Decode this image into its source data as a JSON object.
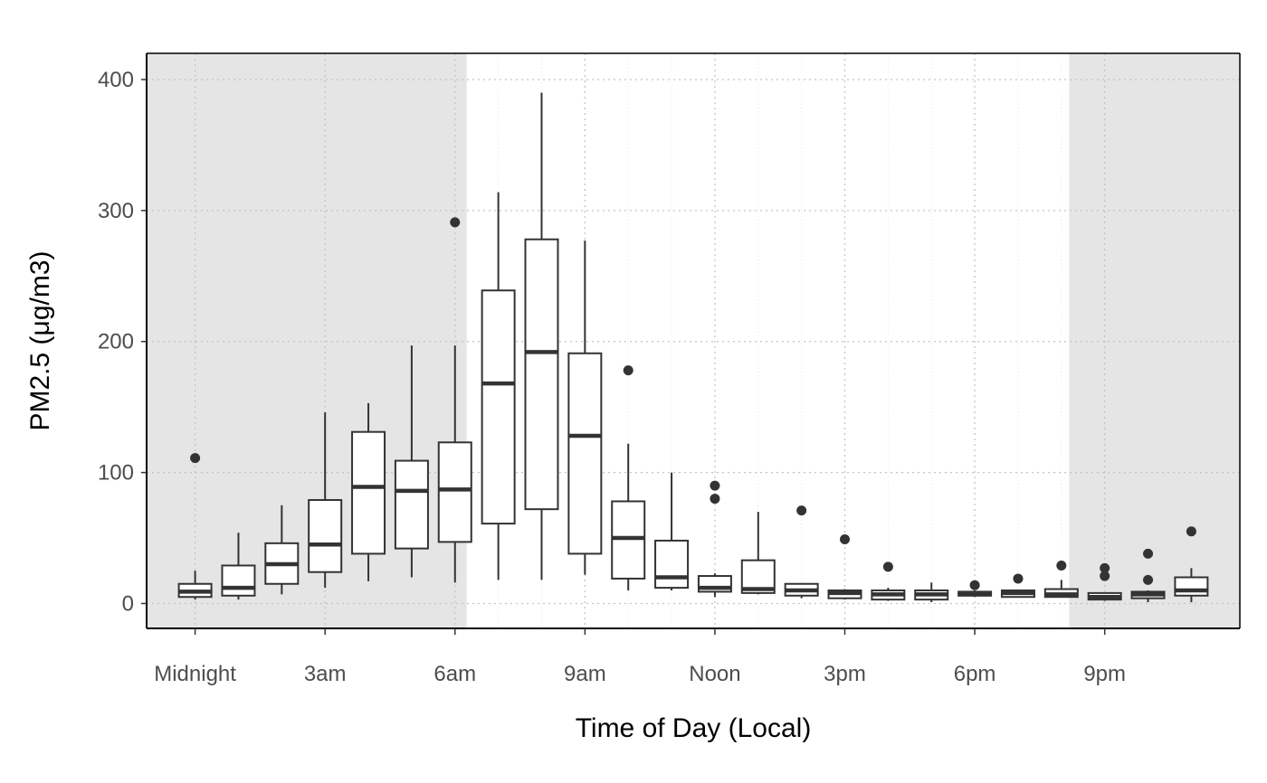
{
  "chart_data": {
    "type": "box",
    "xlabel": "Time of Day (Local)",
    "ylabel": "PM2.5 (μg/m3)",
    "ylim": [
      -19,
      420
    ],
    "xlim": [
      -1.12,
      24.12
    ],
    "yticks": [
      0,
      100,
      200,
      300,
      400
    ],
    "xticks": [
      {
        "hour": 0,
        "label": "Midnight"
      },
      {
        "hour": 3,
        "label": "3am"
      },
      {
        "hour": 6,
        "label": "6am"
      },
      {
        "hour": 9,
        "label": "9am"
      },
      {
        "hour": 12,
        "label": "Noon"
      },
      {
        "hour": 15,
        "label": "3pm"
      },
      {
        "hour": 18,
        "label": "6pm"
      },
      {
        "hour": 21,
        "label": "9pm"
      }
    ],
    "night_shading": [
      {
        "from": -1.12,
        "to": 6.27
      },
      {
        "from": 20.18,
        "to": 24.12
      }
    ],
    "shading_color": "#e5e5e5",
    "box_color": "#333333",
    "grid": "dotted",
    "boxes": [
      {
        "hour": 0,
        "low": 3,
        "q1": 5,
        "median": 9,
        "q3": 15,
        "high": 25,
        "outliers": [
          111
        ]
      },
      {
        "hour": 1,
        "low": 3,
        "q1": 6,
        "median": 12,
        "q3": 29,
        "high": 54,
        "outliers": []
      },
      {
        "hour": 2,
        "low": 7,
        "q1": 15,
        "median": 30,
        "q3": 46,
        "high": 75,
        "outliers": []
      },
      {
        "hour": 3,
        "low": 12,
        "q1": 24,
        "median": 45,
        "q3": 79,
        "high": 146,
        "outliers": []
      },
      {
        "hour": 4,
        "low": 17,
        "q1": 38,
        "median": 89,
        "q3": 131,
        "high": 153,
        "outliers": []
      },
      {
        "hour": 5,
        "low": 20,
        "q1": 42,
        "median": 86,
        "q3": 109,
        "high": 197,
        "outliers": []
      },
      {
        "hour": 6,
        "low": 16,
        "q1": 47,
        "median": 87,
        "q3": 123,
        "high": 197,
        "outliers": [
          291
        ]
      },
      {
        "hour": 7,
        "low": 18,
        "q1": 61,
        "median": 168,
        "q3": 239,
        "high": 314,
        "outliers": []
      },
      {
        "hour": 8,
        "low": 18,
        "q1": 72,
        "median": 192,
        "q3": 278,
        "high": 390,
        "outliers": []
      },
      {
        "hour": 9,
        "low": 22,
        "q1": 38,
        "median": 128,
        "q3": 191,
        "high": 277,
        "outliers": []
      },
      {
        "hour": 10,
        "low": 10,
        "q1": 19,
        "median": 50,
        "q3": 78,
        "high": 122,
        "outliers": [
          178
        ]
      },
      {
        "hour": 11,
        "low": 10,
        "q1": 12,
        "median": 20,
        "q3": 48,
        "high": 100,
        "outliers": []
      },
      {
        "hour": 12,
        "low": 5,
        "q1": 9,
        "median": 12,
        "q3": 21,
        "high": 23,
        "outliers": [
          80,
          90
        ]
      },
      {
        "hour": 13,
        "low": 7,
        "q1": 8,
        "median": 11,
        "q3": 33,
        "high": 70,
        "outliers": []
      },
      {
        "hour": 14,
        "low": 4,
        "q1": 6,
        "median": 10,
        "q3": 15,
        "high": 15,
        "outliers": [
          71
        ]
      },
      {
        "hour": 15,
        "low": 3,
        "q1": 4,
        "median": 8,
        "q3": 10,
        "high": 11,
        "outliers": [
          49
        ]
      },
      {
        "hour": 16,
        "low": 2,
        "q1": 3,
        "median": 7,
        "q3": 10,
        "high": 12,
        "outliers": [
          28
        ]
      },
      {
        "hour": 17,
        "low": 1,
        "q1": 3,
        "median": 7,
        "q3": 10,
        "high": 16,
        "outliers": []
      },
      {
        "hour": 18,
        "low": 5,
        "q1": 6,
        "median": 7,
        "q3": 9,
        "high": 10,
        "outliers": [
          14
        ]
      },
      {
        "hour": 19,
        "low": 5,
        "q1": 5,
        "median": 8,
        "q3": 10,
        "high": 10,
        "outliers": [
          19
        ]
      },
      {
        "hour": 20,
        "low": 5,
        "q1": 5,
        "median": 7,
        "q3": 11,
        "high": 18,
        "outliers": [
          29
        ]
      },
      {
        "hour": 21,
        "low": 2,
        "q1": 3,
        "median": 5,
        "q3": 8,
        "high": 8,
        "outliers": [
          21,
          27
        ]
      },
      {
        "hour": 22,
        "low": 1,
        "q1": 4,
        "median": 7,
        "q3": 9,
        "high": 10,
        "outliers": [
          18,
          38
        ]
      },
      {
        "hour": 23,
        "low": 1,
        "q1": 6,
        "median": 10,
        "q3": 20,
        "high": 27,
        "outliers": [
          55
        ]
      }
    ]
  }
}
